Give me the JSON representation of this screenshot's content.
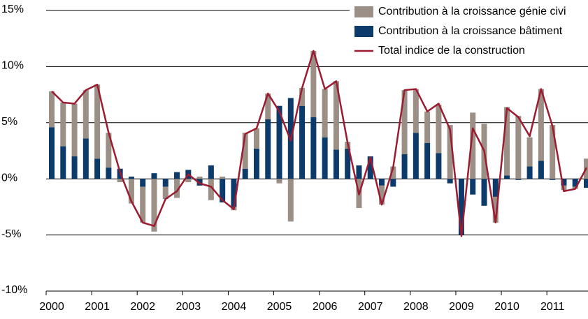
{
  "chart_data": {
    "type": "bar",
    "categories": [
      "2000",
      null,
      null,
      null,
      "2001",
      null,
      null,
      null,
      "2002",
      null,
      null,
      null,
      "2003",
      null,
      null,
      null,
      "2004",
      null,
      null,
      null,
      "2005",
      null,
      null,
      null,
      "2006",
      null,
      null,
      null,
      "2007",
      null,
      null,
      null,
      "2008",
      null,
      null,
      null,
      "2009",
      null,
      null,
      null,
      "2010",
      null,
      null,
      null,
      "2011",
      null,
      null,
      null
    ],
    "series": [
      {
        "name": "Contribution à la croissance génie civi",
        "color": "#9b8f86",
        "type": "bar",
        "values": [
          3.2,
          3.9,
          4.7,
          4.3,
          6.6,
          3.1,
          -0.3,
          -2.2,
          -3.2,
          -4.7,
          -1.1,
          -1.7,
          -0.3,
          0.2,
          -1.9,
          0.2,
          -0.3,
          3.2,
          1.8,
          2.3,
          -0.4,
          -3.8,
          1.6,
          5.9,
          4.3,
          6.1,
          0.6,
          -2.6,
          0,
          -1.7,
          1.1,
          5.7,
          3.9,
          2.8,
          4.3,
          4.8,
          0,
          5.9,
          4.9,
          -2.3,
          6.1,
          5.6,
          2.6,
          6.4,
          4.8,
          -0.4,
          -0.2,
          1.8
        ]
      },
      {
        "name": "Contribution à la croissance bâtiment",
        "color": "#0c3a6b",
        "type": "bar",
        "values": [
          4.6,
          2.9,
          2.0,
          3.6,
          1.8,
          1.0,
          0.9,
          0.2,
          -0.7,
          0.5,
          -0.7,
          0.6,
          0.8,
          -0.6,
          1.2,
          -2.1,
          -2.5,
          0.9,
          2.7,
          5.3,
          6.5,
          7.2,
          6.5,
          5.5,
          3.7,
          2.6,
          2.7,
          1.2,
          2.0,
          -0.6,
          -0.7,
          2.2,
          4.1,
          3.2,
          2.3,
          -0.4,
          -5.0,
          -1.4,
          -2.4,
          -1.6,
          0.3,
          -0.1,
          1.1,
          1.6,
          -0.1,
          -0.6,
          -0.7,
          -0.8
        ]
      },
      {
        "name": "Total indice de la construction",
        "color": "#9b1b30",
        "type": "line",
        "values": [
          7.8,
          6.8,
          6.7,
          7.9,
          8.4,
          4.1,
          0.6,
          -2.0,
          -3.9,
          -4.2,
          -1.8,
          -1.1,
          0.4,
          -0.4,
          -0.7,
          -1.9,
          -2.7,
          4.0,
          4.5,
          7.6,
          6.0,
          3.4,
          8.1,
          11.4,
          8.0,
          8.7,
          3.2,
          -1.4,
          1.9,
          -2.3,
          1.0,
          7.9,
          8.0,
          6.0,
          6.7,
          4.4,
          -5.1,
          4.5,
          2.5,
          -3.9,
          6.3,
          5.5,
          3.8,
          8.0,
          4.7,
          -1.1,
          -0.9,
          1.0
        ]
      }
    ],
    "ylim": [
      -10,
      15
    ],
    "yticks": [
      {
        "value": -10,
        "label": "-10%"
      },
      {
        "value": -5,
        "label": "-5%"
      },
      {
        "value": 0,
        "label": "0%"
      },
      {
        "value": 5,
        "label": "5%"
      },
      {
        "value": 10,
        "label": "10%"
      },
      {
        "value": 15,
        "label": "15%"
      }
    ],
    "grid": true,
    "legend": "top-right"
  }
}
